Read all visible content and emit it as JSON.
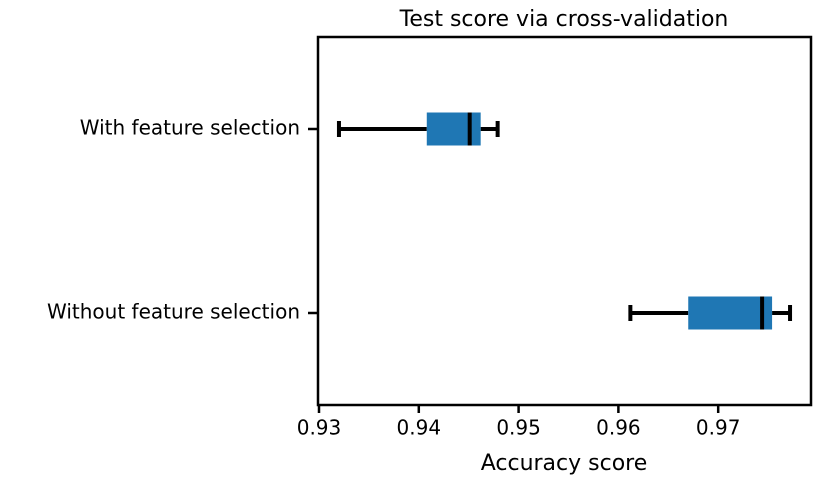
{
  "chart_data": {
    "type": "boxplot",
    "title": "Test score via cross-validation",
    "x_label": "Accuracy score",
    "categories": [
      "With feature selection",
      "Without feature selection"
    ],
    "color": "#1f77b4",
    "min": [
      0.932,
      0.9612
    ],
    "q1": [
      0.9408,
      0.967
    ],
    "median": [
      0.9451,
      0.9744
    ],
    "q3": [
      0.9462,
      0.9754
    ],
    "max": [
      0.9479,
      0.9772
    ],
    "xlim": [
      0.9299,
      0.9793
    ],
    "xticks": [
      0.93,
      0.94,
      0.95,
      0.96,
      0.97
    ]
  }
}
